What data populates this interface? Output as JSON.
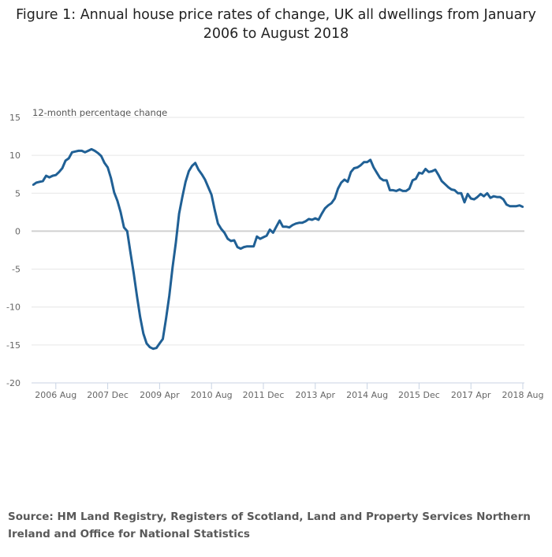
{
  "chart_data": {
    "type": "line",
    "title": "Figure 1: Annual house price rates of change, UK all dwellings from January 2006 to August 2018",
    "ylabel": "12-month percentage change",
    "xlabel": "",
    "ylim": [
      -20,
      15
    ],
    "yticks": [
      15,
      10,
      5,
      0,
      -5,
      -10,
      -15,
      -20
    ],
    "start_month": "2006-01",
    "xticks": [
      {
        "label": "2006 Aug",
        "month_index": 7
      },
      {
        "label": "2007 Dec",
        "month_index": 23
      },
      {
        "label": "2009 Apr",
        "month_index": 39
      },
      {
        "label": "2010 Aug",
        "month_index": 55
      },
      {
        "label": "2011 Dec",
        "month_index": 71
      },
      {
        "label": "2013 Apr",
        "month_index": 87
      },
      {
        "label": "2014 Aug",
        "month_index": 103
      },
      {
        "label": "2015 Dec",
        "month_index": 119
      },
      {
        "label": "2017 Apr",
        "month_index": 135
      },
      {
        "label": "2018 Aug",
        "month_index": 151
      }
    ],
    "grid": true,
    "series": [
      {
        "name": "UK all dwellings",
        "color": "#206095",
        "values": [
          6.1,
          6.4,
          6.5,
          6.6,
          7.3,
          7.1,
          7.3,
          7.4,
          7.8,
          8.3,
          9.3,
          9.6,
          10.4,
          10.5,
          10.6,
          10.6,
          10.4,
          10.6,
          10.8,
          10.6,
          10.3,
          9.9,
          9.0,
          8.4,
          7.0,
          5.1,
          4.0,
          2.5,
          0.5,
          0.0,
          -2.8,
          -5.5,
          -8.5,
          -11.3,
          -13.5,
          -14.8,
          -15.3,
          -15.5,
          -15.4,
          -14.8,
          -14.2,
          -11.5,
          -8.5,
          -4.8,
          -1.5,
          2.3,
          4.5,
          6.5,
          7.9,
          8.6,
          9.0,
          8.1,
          7.5,
          6.8,
          5.8,
          4.8,
          2.8,
          1.0,
          0.3,
          -0.2,
          -1.0,
          -1.3,
          -1.2,
          -2.1,
          -2.3,
          -2.1,
          -2.0,
          -2.0,
          -2.0,
          -0.7,
          -1.0,
          -0.8,
          -0.6,
          0.2,
          -0.2,
          0.6,
          1.4,
          0.6,
          0.6,
          0.5,
          0.8,
          1.0,
          1.1,
          1.1,
          1.3,
          1.6,
          1.5,
          1.7,
          1.5,
          2.3,
          3.0,
          3.4,
          3.7,
          4.3,
          5.6,
          6.4,
          6.8,
          6.5,
          7.8,
          8.3,
          8.4,
          8.7,
          9.1,
          9.1,
          9.4,
          8.4,
          7.7,
          7.0,
          6.7,
          6.7,
          5.4,
          5.4,
          5.3,
          5.5,
          5.3,
          5.3,
          5.6,
          6.7,
          6.9,
          7.7,
          7.6,
          8.2,
          7.8,
          7.9,
          8.1,
          7.4,
          6.6,
          6.2,
          5.8,
          5.5,
          5.4,
          5.0,
          5.0,
          3.8,
          4.9,
          4.3,
          4.2,
          4.5,
          4.9,
          4.6,
          5.0,
          4.4,
          4.6,
          4.5,
          4.5,
          4.2,
          3.5,
          3.3,
          3.3,
          3.3,
          3.4,
          3.2
        ]
      }
    ],
    "legend": "none"
  },
  "source": "Source: HM Land Registry, Registers of Scotland, Land and Property Services Northern Ireland and Office for National Statistics"
}
